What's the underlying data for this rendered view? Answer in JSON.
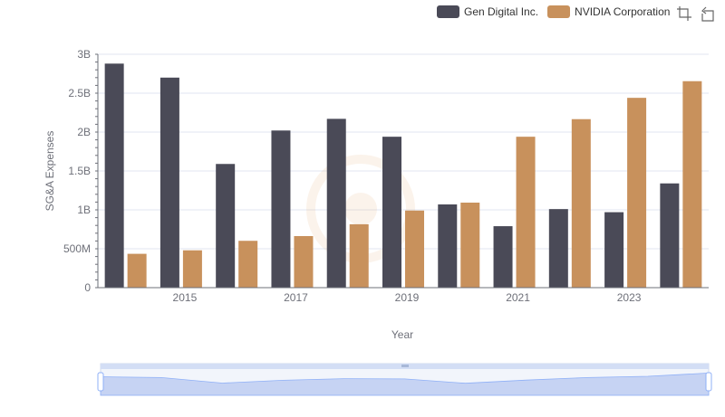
{
  "legend": {
    "items": [
      {
        "label": "Gen Digital Inc.",
        "color": "#4a4a57"
      },
      {
        "label": "NVIDIA Corporation",
        "color": "#c8915c"
      }
    ]
  },
  "toolbox": {
    "icons": [
      "zoom-icon",
      "zoom-reset-icon"
    ]
  },
  "chart_data": {
    "type": "bar",
    "title": "",
    "xlabel": "Year",
    "ylabel": "SG&A Expenses",
    "categories": [
      "2014",
      "2015",
      "2016",
      "2017",
      "2018",
      "2019",
      "2020",
      "2021",
      "2022",
      "2023",
      "2024"
    ],
    "x_tick_labels": [
      "2015",
      "2017",
      "2019",
      "2021",
      "2023"
    ],
    "y_tick_labels": [
      "0",
      "500M",
      "1B",
      "1.5B",
      "2B",
      "2.5B",
      "3B"
    ],
    "ylim": [
      0,
      3000000000
    ],
    "grid": true,
    "legend_position": "top-right",
    "series": [
      {
        "name": "Gen Digital Inc.",
        "color": "#4a4a57",
        "values": [
          2880000000,
          2700000000,
          1590000000,
          2020000000,
          2170000000,
          1940000000,
          1070000000,
          790000000,
          1010000000,
          970000000,
          1340000000
        ]
      },
      {
        "name": "NVIDIA Corporation",
        "color": "#c8915c",
        "values": [
          435000000,
          480000000,
          602000000,
          663000000,
          815000000,
          991000000,
          1093000000,
          1940000000,
          2166000000,
          2440000000,
          2654000000
        ]
      }
    ]
  },
  "data_zoom": {
    "start_percent": 0,
    "end_percent": 100
  }
}
